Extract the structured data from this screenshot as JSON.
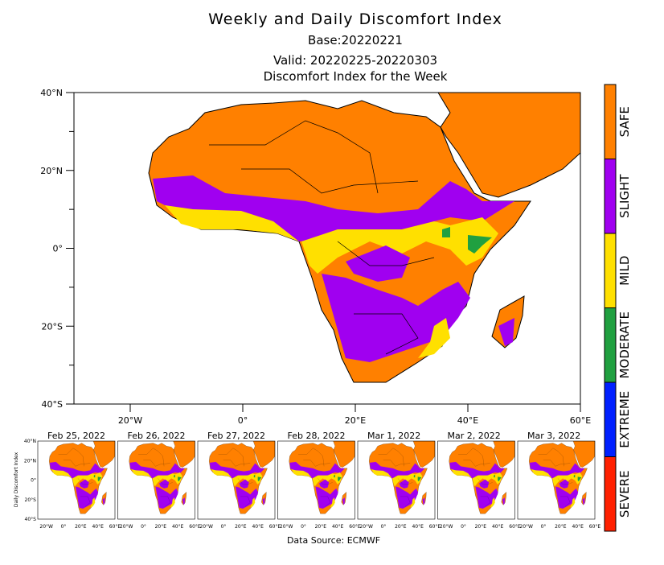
{
  "title": "Weekly and Daily Discomfort Index",
  "base": "Base:20220221",
  "valid": "Valid: 20220225-20220303",
  "subtitle": "Discomfort Index for the Week",
  "map": {
    "y_ticks": [
      "40°N",
      "20°N",
      "0°",
      "20°S",
      "40°S"
    ],
    "x_ticks": [
      "20°W",
      "0°",
      "20°E",
      "40°E",
      "60°E"
    ]
  },
  "legend": [
    {
      "label": "SAFE",
      "color": "#ff8000"
    },
    {
      "label": "SLIGHT",
      "color": "#a000f0"
    },
    {
      "label": "MILD",
      "color": "#ffe000"
    },
    {
      "label": "MODERATE",
      "color": "#20a040"
    },
    {
      "label": "EXTREME",
      "color": "#0020ff"
    },
    {
      "label": "SEVERE",
      "color": "#ff2000"
    }
  ],
  "daily": {
    "axis_label": "Daily Discomfort Index",
    "dates": [
      "Feb 25, 2022",
      "Feb 26, 2022",
      "Feb 27, 2022",
      "Feb 28, 2022",
      "Mar 1, 2022",
      "Mar 2, 2022",
      "Mar 3, 2022"
    ]
  },
  "source": "Data Source: ECMWF"
}
